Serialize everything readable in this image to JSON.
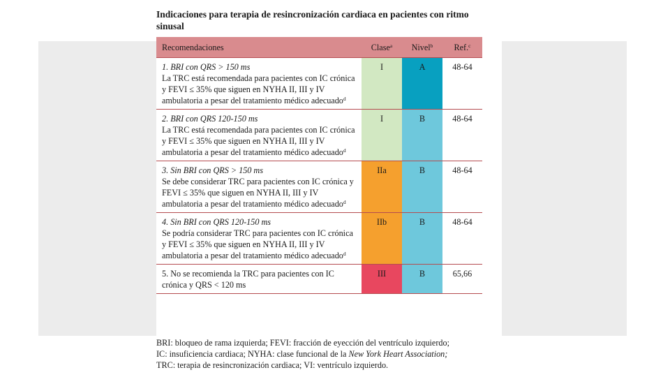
{
  "title": "Indicaciones para terapia de resincronización cardiaca en pacientes con ritmo sinusal",
  "headers": {
    "rec": "Recomendaciones",
    "clase": "Clase",
    "clase_sup": "a",
    "nivel": "Nivel",
    "nivel_sup": "b",
    "ref": "Ref.",
    "ref_sup": "c"
  },
  "colors": {
    "header_bg": "#d98b8e",
    "clase_I": "#d2e8c2",
    "clase_IIa": "#f5a02e",
    "clase_IIb": "#f5a02e",
    "clase_III": "#e8475f",
    "nivel_A": "#08a0c0",
    "nivel_B": "#6ec8dc"
  },
  "rows": [
    {
      "head": "1. BRI con QRS > 150 ms",
      "body": "La TRC está recomendada para pacientes con IC crónica y FEVI ≤ 35% que siguen en NYHA II, III y IV ambulatoria a pesar del tratamiento médico adecuado",
      "body_sup": "d",
      "clase": "I",
      "nivel": "A",
      "ref": "48-64"
    },
    {
      "head": "2. BRI con QRS 120-150 ms",
      "body": "La TRC está recomendada para pacientes con IC crónica y FEVI ≤ 35% que siguen en NYHA II, III y IV ambulatoria a pesar del tratamiento médico adecuado",
      "body_sup": "d",
      "clase": "I",
      "nivel": "B",
      "ref": "48-64"
    },
    {
      "head": "3. Sin BRI con QRS > 150 ms",
      "body": "Se debe considerar TRC para pacientes con IC crónica y FEVI ≤ 35% que siguen en NYHA II, III y IV ambulatoria a pesar del tratamiento médico adecuado",
      "body_sup": "d",
      "clase": "IIa",
      "nivel": "B",
      "ref": "48-64"
    },
    {
      "head": "4. Sin BRI con QRS 120-150 ms",
      "body": "Se podría considerar TRC para pacientes con IC crónica y FEVI ≤ 35% que siguen en NYHA II, III y IV ambulatoria a pesar del tratamiento médico adecuado",
      "body_sup": "d",
      "clase": "IIb",
      "nivel": "B",
      "ref": "48-64"
    },
    {
      "head": "",
      "body": "5. No se recomienda la TRC para pacientes con IC crónica y QRS < 120 ms",
      "body_sup": "",
      "clase": "III",
      "nivel": "B",
      "ref": "65,66"
    }
  ],
  "footnote": {
    "line1": "BRI: bloqueo de rama izquierda; FEVI: fracción de eyección del ventrículo izquierdo;",
    "line2a": "IC: insuficiencia cardiaca; NYHA: clase funcional de la ",
    "line2_italic": "New York Heart Association;",
    "line3": "TRC: terapia de resincronización cardiaca; VI: ventrículo izquierdo."
  }
}
